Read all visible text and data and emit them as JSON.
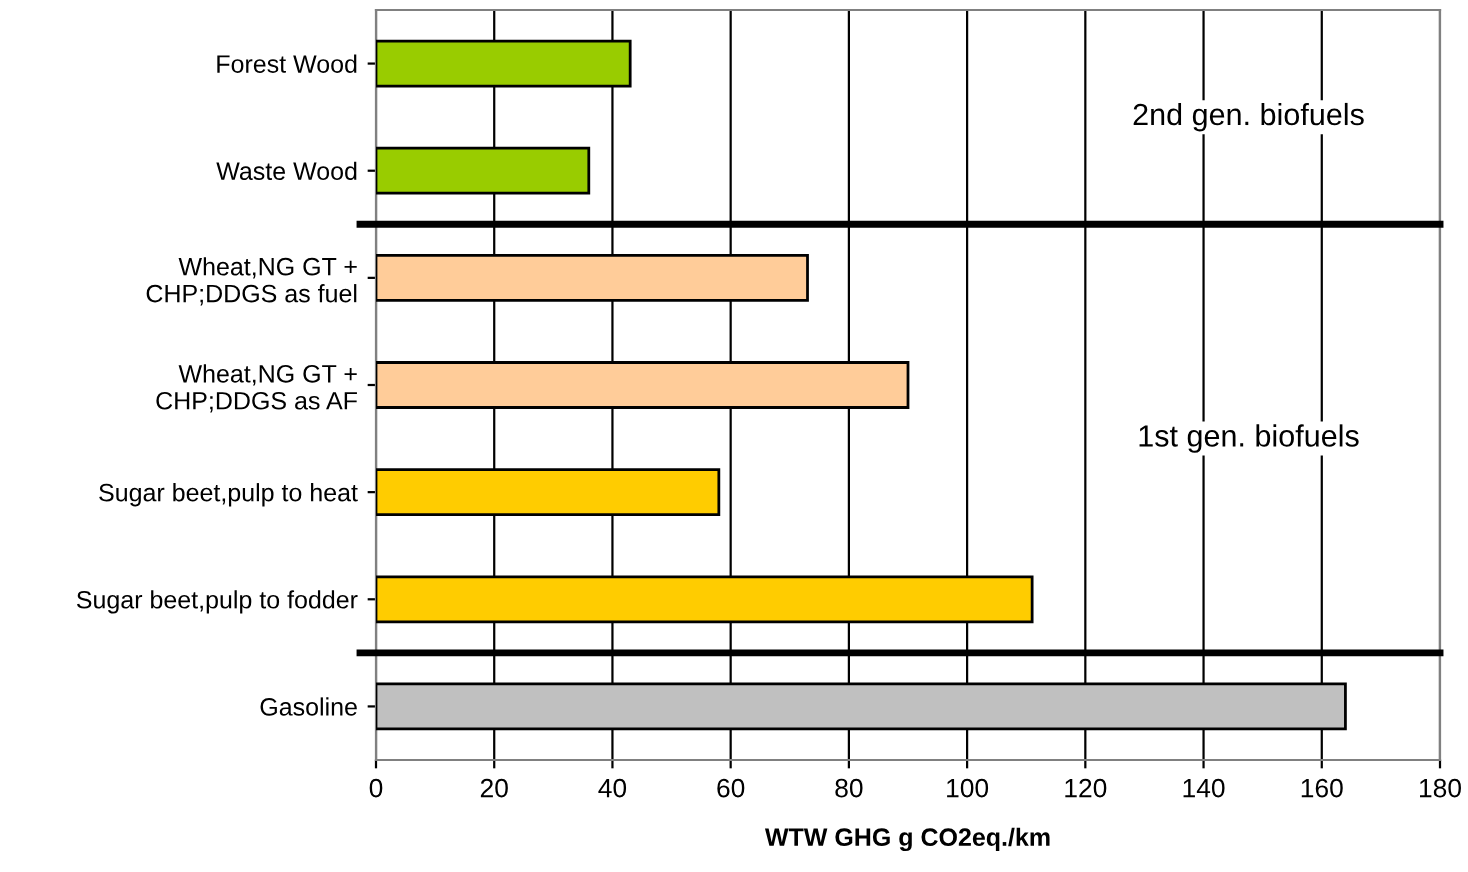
{
  "chart_data": {
    "type": "bar",
    "orientation": "horizontal",
    "xlabel": "WTW GHG g CO2eq./km",
    "categories": [
      "Forest Wood",
      "Waste Wood",
      "Wheat,NG GT +\nCHP;DDGS as fuel",
      "Wheat,NG GT +\nCHP;DDGS as AF",
      "Sugar beet,pulp to heat",
      "Sugar beet,pulp to fodder",
      "Gasoline"
    ],
    "values": [
      43,
      36,
      73,
      90,
      58,
      111,
      164
    ],
    "colors": [
      "#99cc00",
      "#99cc00",
      "#ffcc99",
      "#ffcc99",
      "#ffcc00",
      "#ffcc00",
      "#c0c0c0"
    ],
    "xlim": [
      0,
      180
    ],
    "xticks": [
      0,
      20,
      40,
      60,
      80,
      100,
      120,
      140,
      160,
      180
    ],
    "grid": "x",
    "annotations": [
      "2nd gen. biofuels",
      "1st gen. biofuels"
    ]
  }
}
